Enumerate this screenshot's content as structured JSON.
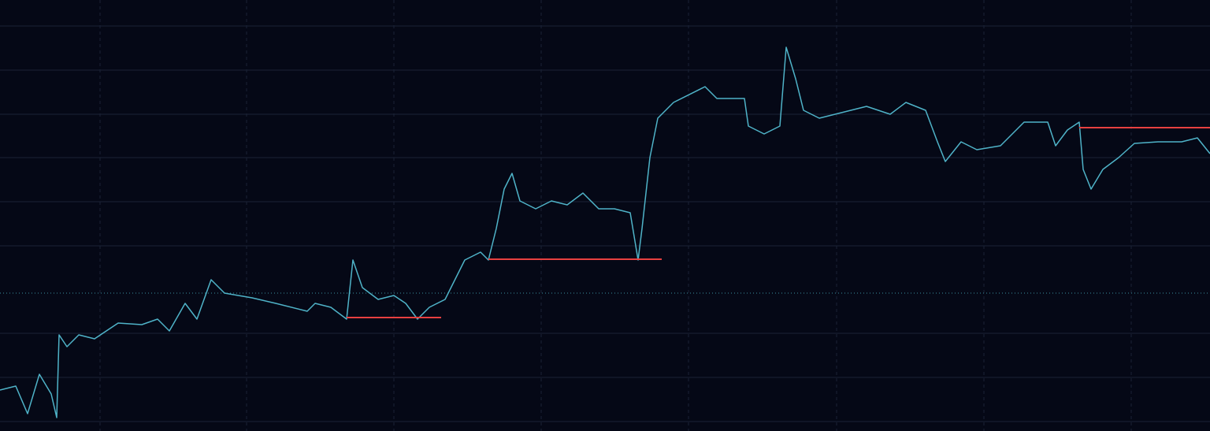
{
  "chart_data": {
    "type": "line",
    "xlim": [
      0,
      1536
    ],
    "ylim": [
      0,
      547
    ],
    "xticks": [
      127,
      313,
      500,
      687,
      874,
      1062,
      1249,
      1436
    ],
    "yticks": [
      12,
      68,
      124,
      235,
      291,
      347,
      402,
      458,
      514
    ],
    "grid": true,
    "x": [
      0,
      20,
      35,
      50,
      65,
      72,
      75,
      85,
      100,
      120,
      150,
      180,
      200,
      215,
      235,
      250,
      268,
      285,
      320,
      350,
      390,
      400,
      420,
      440,
      448,
      460,
      480,
      500,
      515,
      530,
      545,
      565,
      590,
      610,
      620,
      630,
      640,
      650,
      660,
      680,
      700,
      720,
      740,
      760,
      780,
      800,
      810,
      815,
      825,
      835,
      855,
      895,
      910,
      945,
      950,
      970,
      990,
      998,
      1010,
      1020,
      1040,
      1060,
      1100,
      1130,
      1150,
      1175,
      1190,
      1200,
      1220,
      1240,
      1270,
      1300,
      1330,
      1340,
      1355,
      1370,
      1375,
      1385,
      1400,
      1420,
      1440,
      1470,
      1500,
      1520,
      1536
    ],
    "series": [
      {
        "color": "#4fb3c8",
        "values": [
          52,
          57,
          22,
          72,
          47,
          17,
          122,
          107,
          122,
          117,
          137,
          135,
          142,
          127,
          162,
          142,
          192,
          175,
          169,
          162,
          152,
          162,
          157,
          142,
          217,
          182,
          167,
          172,
          162,
          142,
          157,
          167,
          217,
          227,
          217,
          257,
          307,
          327,
          292,
          282,
          292,
          287,
          302,
          282,
          282,
          277,
          217,
          257,
          347,
          397,
          417,
          437,
          422,
          422,
          387,
          377,
          387,
          487,
          447,
          407,
          397,
          402,
          412,
          402,
          417,
          407,
          367,
          342,
          367,
          357,
          362,
          392,
          392,
          362,
          382,
          392,
          332,
          307,
          332,
          347,
          365,
          367,
          367,
          372,
          352
        ]
      }
    ],
    "levels": [
      {
        "value": 144,
        "x": [
          440,
          560
        ],
        "color": "#e84040"
      },
      {
        "value": 218,
        "x": [
          620,
          840
        ],
        "color": "#e84040"
      },
      {
        "value": 385,
        "x": [
          1370,
          1536
        ],
        "color": "#e84040"
      }
    ],
    "reference_line": {
      "value": 175,
      "color": "#3a8fa0"
    }
  }
}
